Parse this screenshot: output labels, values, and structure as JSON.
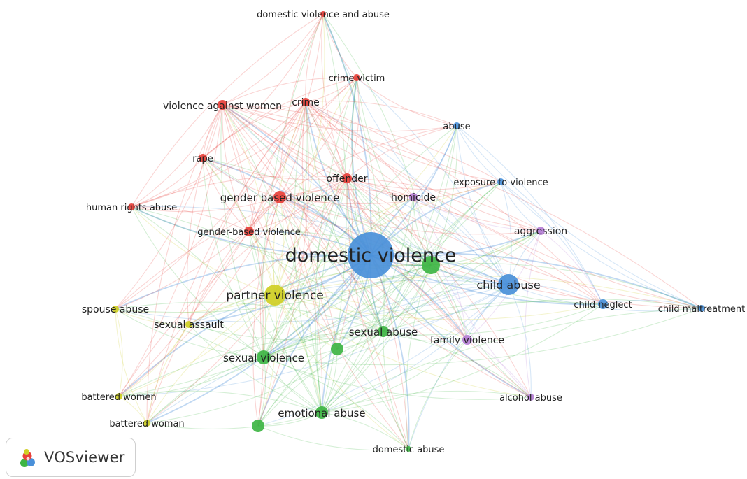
{
  "brand": {
    "name": "VOSviewer",
    "logo_icon": "vosviewer-logo-icon"
  },
  "clusters": {
    "red": "#e8403a",
    "blue": "#4a90d9",
    "green": "#3eb544",
    "yellow": "#cfcf24",
    "purple": "#b57fd6"
  },
  "nodes": [
    {
      "id": "domestic-violence",
      "label": "domestic violence",
      "cluster": "blue"
    },
    {
      "id": "child-abuse",
      "label": "child abuse",
      "cluster": "blue"
    },
    {
      "id": "abuse",
      "label": "abuse",
      "cluster": "blue"
    },
    {
      "id": "exposure-to-violence",
      "label": "exposure to violence",
      "cluster": "blue"
    },
    {
      "id": "child-neglect",
      "label": "child neglect",
      "cluster": "blue"
    },
    {
      "id": "child-maltreatment",
      "label": "child maltreatment",
      "cluster": "blue"
    },
    {
      "id": "domestic-violence-and-abuse",
      "label": "domestic violence and abuse",
      "cluster": "red"
    },
    {
      "id": "crime-victim",
      "label": "crime victim",
      "cluster": "red"
    },
    {
      "id": "violence-against-women",
      "label": "violence against women",
      "cluster": "red"
    },
    {
      "id": "crime",
      "label": "crime",
      "cluster": "red"
    },
    {
      "id": "rape",
      "label": "rape",
      "cluster": "red"
    },
    {
      "id": "offender",
      "label": "offender",
      "cluster": "red"
    },
    {
      "id": "gender-based-violence-spaced",
      "label": "gender based violence",
      "cluster": "red"
    },
    {
      "id": "human-rights-abuse",
      "label": "human rights abuse",
      "cluster": "red"
    },
    {
      "id": "gender-based-violence",
      "label": "gender-based violence",
      "cluster": "red"
    },
    {
      "id": "homicide",
      "label": "homicide",
      "cluster": "purple"
    },
    {
      "id": "aggression",
      "label": "aggression",
      "cluster": "purple"
    },
    {
      "id": "family-violence",
      "label": "family violence",
      "cluster": "purple"
    },
    {
      "id": "alcohol-abuse",
      "label": "alcohol abuse",
      "cluster": "purple"
    },
    {
      "id": "partner-violence",
      "label": "partner violence",
      "cluster": "yellow"
    },
    {
      "id": "spouse-abuse",
      "label": "spouse abuse",
      "cluster": "yellow"
    },
    {
      "id": "sexual-assault",
      "label": "sexual assault",
      "cluster": "yellow"
    },
    {
      "id": "battered-women",
      "label": "battered women",
      "cluster": "yellow"
    },
    {
      "id": "battered-woman",
      "label": "battered woman",
      "cluster": "yellow"
    },
    {
      "id": "sexual-abuse",
      "label": "sexual abuse",
      "cluster": "green"
    },
    {
      "id": "sexual-violence",
      "label": "sexual violence",
      "cluster": "green"
    },
    {
      "id": "emotional-abuse",
      "label": "emotional abuse",
      "cluster": "green"
    },
    {
      "id": "domestic-abuse",
      "label": "domestic abuse",
      "cluster": "green"
    },
    {
      "id": "green-hub",
      "label": "",
      "cluster": "green"
    },
    {
      "id": "green-mid",
      "label": "",
      "cluster": "green"
    },
    {
      "id": "green-bottom",
      "label": "",
      "cluster": "green"
    }
  ]
}
